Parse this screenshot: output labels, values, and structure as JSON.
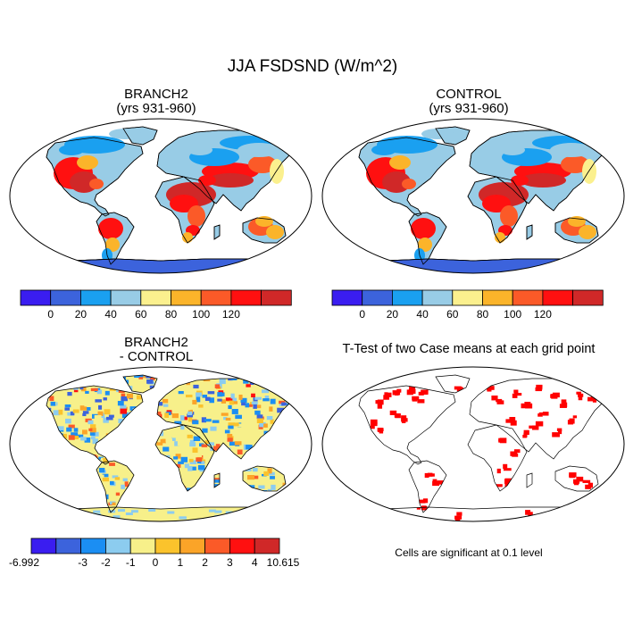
{
  "title": "JJA FSDSND (W/m^2)",
  "panels": [
    {
      "title_line1": "BRANCH2",
      "title_line2": "(yrs 931-960)"
    },
    {
      "title_line1": "CONTROL",
      "title_line2": "(yrs 931-960)"
    },
    {
      "title_line1": "BRANCH2",
      "title_line2": "- CONTROL"
    },
    {
      "title_line1": "T-Test of two Case means at each grid point",
      "title_line2": ""
    }
  ],
  "footnote": "Cells are significant at 0.1 level",
  "colorbars": {
    "absolute": {
      "colors": [
        "#3a1df0",
        "#3c63dc",
        "#1aa0f0",
        "#98cce6",
        "#fbf08e",
        "#fbb42a",
        "#fb5a28",
        "#ff1010",
        "#d02828"
      ],
      "labels": [
        "0",
        "20",
        "40",
        "60",
        "80",
        "100",
        "120"
      ]
    },
    "difference": {
      "colors": [
        "#3a1df0",
        "#3c63dc",
        "#1b8ef3",
        "#8cccef",
        "#f7f08a",
        "#fbc32c",
        "#fba428",
        "#fb5a28",
        "#ff1010",
        "#d02828"
      ],
      "labels": [
        "-6.992",
        "-3",
        "-2",
        "-1",
        "0",
        "1",
        "2",
        "3",
        "4",
        "10.615"
      ]
    }
  },
  "significance_color": "#ff0000"
}
